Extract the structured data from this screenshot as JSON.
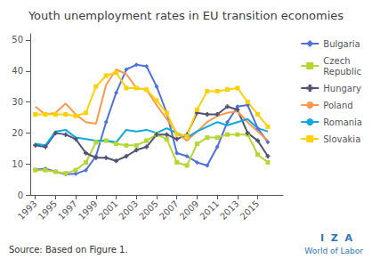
{
  "chart_data": {
    "type": "line",
    "title": "Youth unemployment rates in EU transition economies",
    "x": [
      1993,
      1994,
      1995,
      1996,
      1997,
      1998,
      1999,
      2000,
      2001,
      2002,
      2003,
      2004,
      2005,
      2006,
      2007,
      2008,
      2009,
      2010,
      2011,
      2012,
      2013,
      2014,
      2015,
      2016
    ],
    "series": [
      {
        "name": "Bulgaria",
        "marker": "diamond",
        "values": [
          8.2,
          8.5,
          7.5,
          6.7,
          6.8,
          8.0,
          12.5,
          23.5,
          33.0,
          40.5,
          42.0,
          41.5,
          35.0,
          26.5,
          13.5,
          12.5,
          10.5,
          9.5,
          15.5,
          23.5,
          28.5,
          29.0,
          21.5,
          17.0
        ]
      },
      {
        "name": "Czech\nRepublic",
        "marker": "square",
        "values": [
          8.0,
          8.0,
          7.5,
          7.0,
          8.0,
          10.5,
          17.0,
          17.5,
          16.5,
          16.0,
          16.0,
          17.5,
          19.5,
          18.0,
          10.5,
          9.5,
          16.5,
          18.5,
          18.5,
          19.5,
          19.5,
          19.5,
          13.0,
          10.5
        ]
      },
      {
        "name": "Hungary",
        "marker": "plus",
        "values": [
          16.0,
          15.5,
          20.0,
          19.5,
          18.0,
          13.5,
          12.0,
          12.0,
          11.0,
          12.5,
          14.5,
          15.5,
          19.5,
          19.5,
          18.0,
          19.5,
          26.5,
          26.0,
          26.0,
          28.5,
          27.5,
          20.0,
          17.5,
          12.5
        ]
      },
      {
        "name": "Poland",
        "marker": "none",
        "values": [
          28.5,
          26.0,
          26.5,
          29.5,
          26.0,
          23.5,
          23.0,
          35.5,
          40.5,
          39.0,
          34.5,
          34.0,
          29.0,
          24.5,
          20.0,
          17.5,
          20.5,
          23.5,
          25.5,
          26.5,
          27.0,
          23.5,
          20.5,
          17.5
        ]
      },
      {
        "name": "Romania",
        "marker": "none",
        "values": [
          16.5,
          16.0,
          20.5,
          21.0,
          18.5,
          18.0,
          17.5,
          17.5,
          17.0,
          21.0,
          20.5,
          21.0,
          20.0,
          21.5,
          20.0,
          18.5,
          20.5,
          22.0,
          23.5,
          22.5,
          23.5,
          24.5,
          21.5,
          20.5
        ]
      },
      {
        "name": "Slovakia",
        "marker": "square",
        "values": [
          26.0,
          26.0,
          26.0,
          26.0,
          25.5,
          26.5,
          35.0,
          38.5,
          39.5,
          34.5,
          34.5,
          34.0,
          30.5,
          26.5,
          19.5,
          19.0,
          27.5,
          33.5,
          33.5,
          34.0,
          34.5,
          30.0,
          26.0,
          22.0
        ]
      }
    ],
    "xlim": [
      1992.5,
      2017.5
    ],
    "xticks": [
      1993,
      1995,
      1997,
      1999,
      2001,
      2003,
      2005,
      2007,
      2009,
      2011,
      2013,
      2015
    ],
    "ylim": [
      0,
      52
    ],
    "yticks": [
      0,
      10,
      20,
      30,
      40,
      50
    ],
    "grid": false,
    "legend": "right",
    "annotations": [
      "Source: Based on Figure 1.",
      "I  Z  A",
      "World of Labor"
    ]
  }
}
